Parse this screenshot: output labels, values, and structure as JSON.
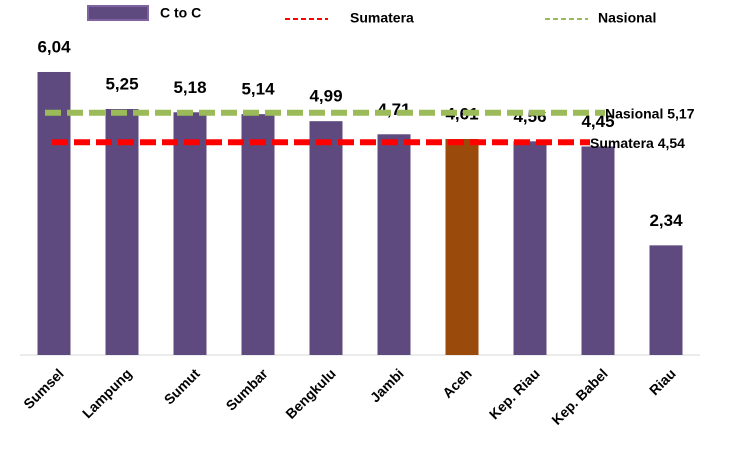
{
  "chart_data": {
    "type": "bar",
    "categories": [
      "Sumsel",
      "Lampung",
      "Sumut",
      "Sumbar",
      "Bengkulu",
      "Jambi",
      "Aceh",
      "Kep. Riau",
      "Kep. Babel",
      "Riau"
    ],
    "series": [
      {
        "name": "C to C",
        "color": "#5e4a7e",
        "colors": [
          "#5e4a7e",
          "#5e4a7e",
          "#5e4a7e",
          "#5e4a7e",
          "#5e4a7e",
          "#5e4a7e",
          "#9a4a0a",
          "#5e4a7e",
          "#5e4a7e",
          "#5e4a7e"
        ],
        "values": [
          6.04,
          5.25,
          5.18,
          5.14,
          4.99,
          4.71,
          4.61,
          4.56,
          4.45,
          2.34
        ],
        "value_labels": [
          "6,04",
          "5,25",
          "5,18",
          "5,14",
          "4,99",
          "4,71",
          "4,61",
          "4,56",
          "4,45",
          "2,34"
        ]
      }
    ],
    "reference_lines": [
      {
        "name": "Sumatera",
        "value": 4.54,
        "label": "Sumatera 4,54",
        "color": "#ff0000"
      },
      {
        "name": "Nasional",
        "value": 5.17,
        "label": "Nasional 5,17",
        "color": "#9bbb59"
      }
    ],
    "ylim": [
      0,
      7
    ]
  }
}
